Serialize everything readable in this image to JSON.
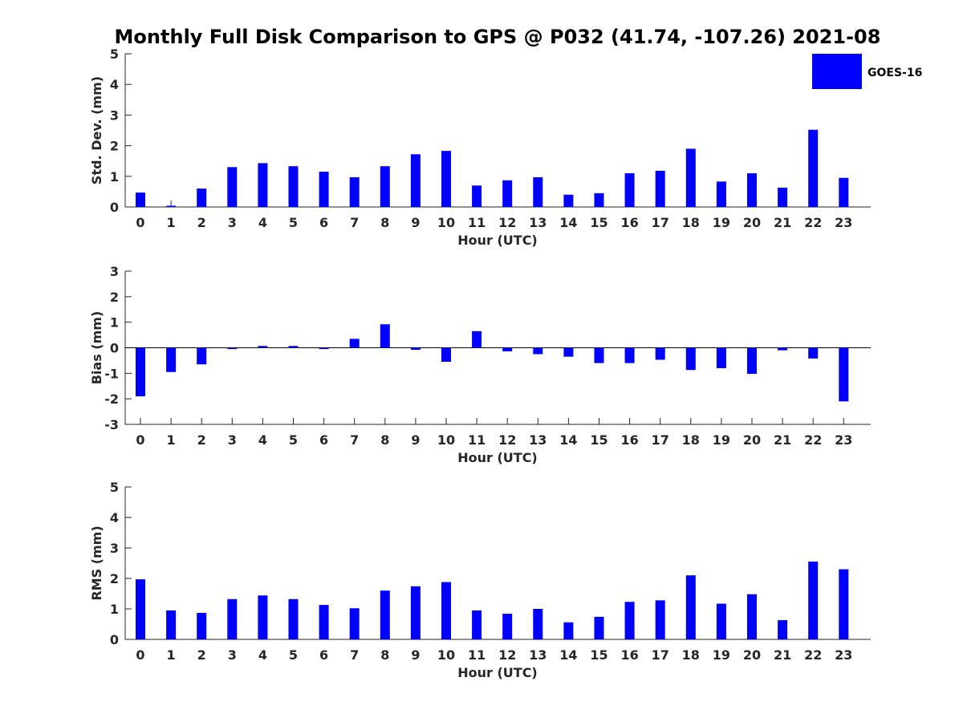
{
  "title": "Monthly Full Disk Comparison to GPS @ P032 (41.74, -107.26) 2021-08",
  "legend": {
    "label": "GOES-16",
    "color": "#0000ff"
  },
  "chart_data": [
    {
      "type": "bar",
      "ylabel": "Std. Dev. (mm)",
      "xlabel": "Hour (UTC)",
      "ylim": [
        0,
        5
      ],
      "yticks": [
        "0",
        "1",
        "2",
        "3",
        "4",
        "5"
      ],
      "categories": [
        "0",
        "1",
        "2",
        "3",
        "4",
        "5",
        "6",
        "7",
        "8",
        "9",
        "10",
        "11",
        "12",
        "13",
        "14",
        "15",
        "16",
        "17",
        "18",
        "19",
        "20",
        "21",
        "22",
        "23"
      ],
      "series": [
        {
          "name": "GOES-16",
          "values": [
            0.47,
            0.04,
            0.6,
            1.3,
            1.43,
            1.33,
            1.15,
            0.97,
            1.33,
            1.72,
            1.83,
            0.7,
            0.87,
            0.97,
            0.4,
            0.45,
            1.1,
            1.18,
            1.9,
            0.83,
            1.1,
            0.63,
            2.52,
            0.95
          ]
        }
      ]
    },
    {
      "type": "bar",
      "ylabel": "Bias (mm)",
      "xlabel": "Hour (UTC)",
      "ylim": [
        -3,
        3
      ],
      "yticks": [
        "-3",
        "-2",
        "-1",
        "0",
        "1",
        "2",
        "3"
      ],
      "categories": [
        "0",
        "1",
        "2",
        "3",
        "4",
        "5",
        "6",
        "7",
        "8",
        "9",
        "10",
        "11",
        "12",
        "13",
        "14",
        "15",
        "16",
        "17",
        "18",
        "19",
        "20",
        "21",
        "22",
        "23"
      ],
      "series": [
        {
          "name": "GOES-16",
          "values": [
            -1.9,
            -0.95,
            -0.65,
            -0.05,
            0.07,
            0.07,
            -0.05,
            0.35,
            0.92,
            -0.08,
            -0.55,
            0.65,
            -0.14,
            -0.25,
            -0.35,
            -0.6,
            -0.6,
            -0.47,
            -0.87,
            -0.8,
            -1.02,
            -0.1,
            -0.42,
            -2.1
          ]
        }
      ]
    },
    {
      "type": "bar",
      "ylabel": "RMS (mm)",
      "xlabel": "Hour (UTC)",
      "ylim": [
        0,
        5
      ],
      "yticks": [
        "0",
        "1",
        "2",
        "3",
        "4",
        "5"
      ],
      "categories": [
        "0",
        "1",
        "2",
        "3",
        "4",
        "5",
        "6",
        "7",
        "8",
        "9",
        "10",
        "11",
        "12",
        "13",
        "14",
        "15",
        "16",
        "17",
        "18",
        "19",
        "20",
        "21",
        "22",
        "23"
      ],
      "series": [
        {
          "name": "GOES-16",
          "values": [
            1.97,
            0.95,
            0.87,
            1.32,
            1.44,
            1.32,
            1.13,
            1.02,
            1.6,
            1.74,
            1.88,
            0.95,
            0.84,
            1.0,
            0.56,
            0.74,
            1.23,
            1.28,
            2.1,
            1.17,
            1.48,
            0.63,
            2.55,
            2.3
          ]
        }
      ]
    }
  ]
}
